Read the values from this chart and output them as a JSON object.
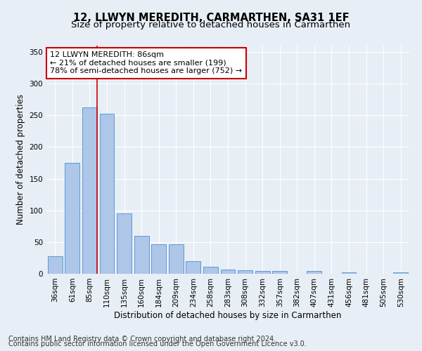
{
  "title": "12, LLWYN MEREDITH, CARMARTHEN, SA31 1EF",
  "subtitle": "Size of property relative to detached houses in Carmarthen",
  "xlabel": "Distribution of detached houses by size in Carmarthen",
  "ylabel": "Number of detached properties",
  "categories": [
    "36sqm",
    "61sqm",
    "85sqm",
    "110sqm",
    "135sqm",
    "160sqm",
    "184sqm",
    "209sqm",
    "234sqm",
    "258sqm",
    "283sqm",
    "308sqm",
    "332sqm",
    "357sqm",
    "382sqm",
    "407sqm",
    "431sqm",
    "456sqm",
    "481sqm",
    "505sqm",
    "530sqm"
  ],
  "values": [
    28,
    175,
    263,
    253,
    95,
    60,
    47,
    47,
    20,
    11,
    7,
    5,
    4,
    4,
    0,
    4,
    0,
    2,
    0,
    0,
    2
  ],
  "bar_color": "#aec6e8",
  "bar_edge_color": "#5b9bd5",
  "highlight_line_color": "#cc0000",
  "highlight_bar_index": 2,
  "annotation_line1": "12 LLWYN MEREDITH: 86sqm",
  "annotation_line2": "← 21% of detached houses are smaller (199)",
  "annotation_line3": "78% of semi-detached houses are larger (752) →",
  "annotation_box_edge_color": "#cc0000",
  "annotation_bg_color": "#ffffff",
  "ylim": [
    0,
    360
  ],
  "yticks": [
    0,
    50,
    100,
    150,
    200,
    250,
    300,
    350
  ],
  "bg_color": "#e8eef5",
  "plot_bg_color": "#e8eef5",
  "footer_line1": "Contains HM Land Registry data © Crown copyright and database right 2024.",
  "footer_line2": "Contains public sector information licensed under the Open Government Licence v3.0.",
  "title_fontsize": 10.5,
  "subtitle_fontsize": 9.5,
  "xlabel_fontsize": 8.5,
  "ylabel_fontsize": 8.5,
  "tick_fontsize": 7.5,
  "annotation_fontsize": 8,
  "footer_fontsize": 7
}
